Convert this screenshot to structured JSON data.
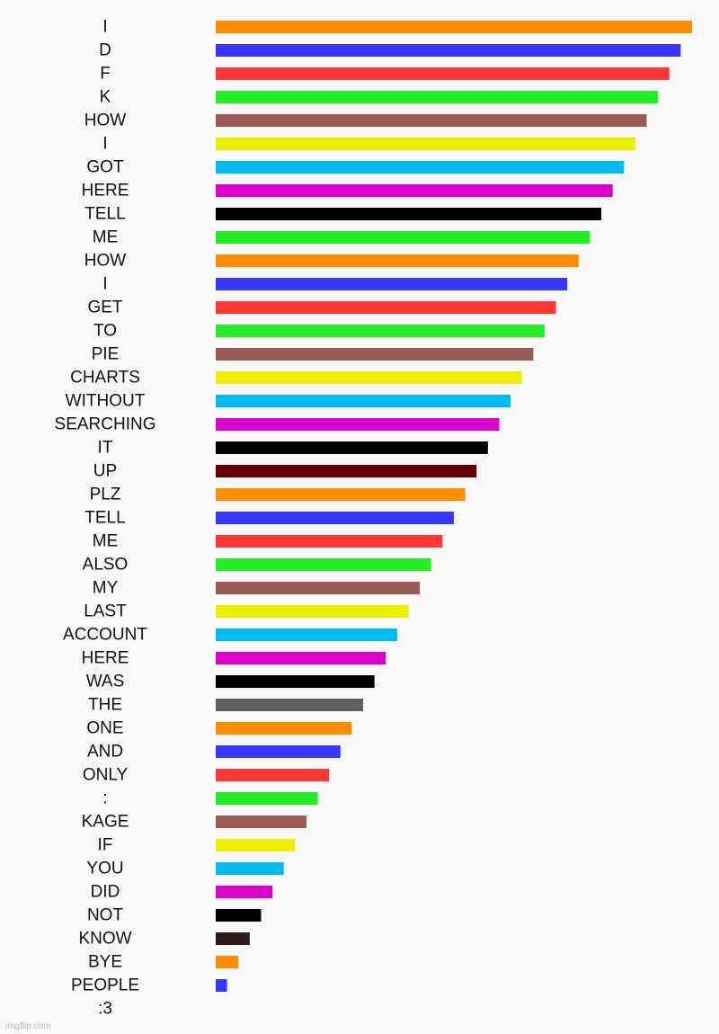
{
  "chart_data": {
    "type": "bar",
    "orientation": "horizontal",
    "categories": [
      "I",
      "D",
      "F",
      "K",
      "HOW",
      "I",
      "GOT",
      "HERE",
      "TELL",
      "ME",
      "HOW",
      "I",
      "GET",
      "TO",
      "PIE",
      "CHARTS",
      "WITHOUT",
      "SEARCHING",
      "IT",
      "UP",
      "PLZ",
      "TELL",
      "ME",
      "ALSO",
      "MY",
      "LAST",
      "ACCOUNT",
      "HERE",
      "WAS",
      "THE",
      "ONE",
      "AND",
      "ONLY",
      ":",
      "KAGE",
      "IF",
      "YOU",
      "DID",
      "NOT",
      "KNOW",
      "BYE",
      "PEOPLE",
      ":3"
    ],
    "values": [
      42,
      41,
      40,
      39,
      38,
      37,
      36,
      35,
      34,
      33,
      32,
      31,
      30,
      29,
      28,
      27,
      26,
      25,
      24,
      23,
      22,
      21,
      20,
      19,
      18,
      17,
      16,
      15,
      14,
      13,
      12,
      11,
      10,
      9,
      8,
      7,
      6,
      5,
      4,
      3,
      2,
      1,
      0
    ],
    "colors": [
      "#ff8c00",
      "#3636ff",
      "#ff3636",
      "#26ee26",
      "#9c5a56",
      "#eeee00",
      "#00bbf0",
      "#dd00cc",
      "#000000",
      "#26ee26",
      "#ff8c00",
      "#3636ff",
      "#ff3636",
      "#26ee26",
      "#9c5a56",
      "#eeee00",
      "#00bbf0",
      "#dd00cc",
      "#000000",
      "#660000",
      "#ff8c00",
      "#3636ff",
      "#ff3636",
      "#26ee26",
      "#9c5a56",
      "#eeee00",
      "#00bbf0",
      "#dd00cc",
      "#000000",
      "#5e5e5e",
      "#ff8c00",
      "#3636ff",
      "#ff3636",
      "#26ee26",
      "#9c5a56",
      "#eeee00",
      "#00bbf0",
      "#dd00cc",
      "#000000",
      "#2e1a1a",
      "#ff8c00",
      "#3636ff",
      "#ff8c00"
    ],
    "title": "",
    "xlabel": "",
    "ylabel": "",
    "xlim": [
      0,
      42
    ],
    "grid": false,
    "legend": "none"
  },
  "watermark": "imgflip.com"
}
